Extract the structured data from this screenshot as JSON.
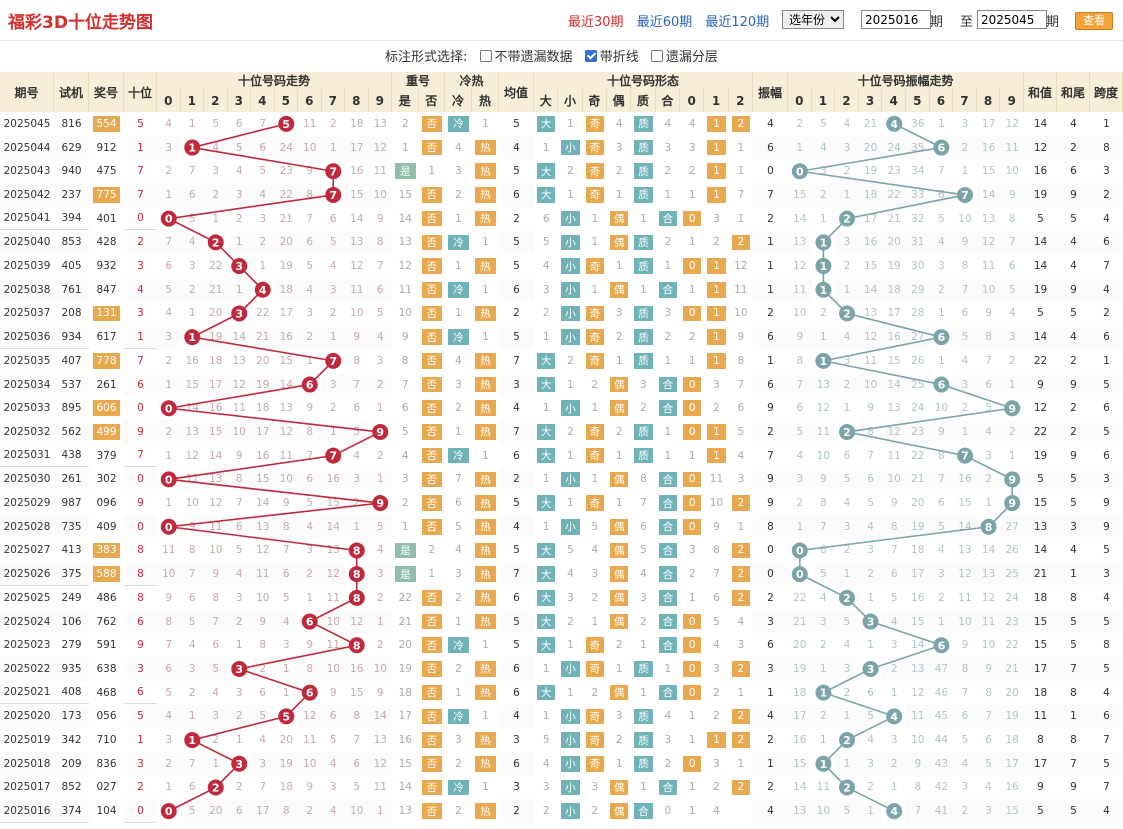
{
  "header": {
    "title": "福彩3D十位走势图",
    "periods": [
      "最近30期",
      "最近60期",
      "最近120期"
    ],
    "year_select": "选年份",
    "range_from": "2025016",
    "period_word": "期",
    "to_word": "至",
    "range_to": "2025045",
    "query_button": "查看"
  },
  "options": {
    "label": "标注形式选择:",
    "items": [
      {
        "label": "不带遗漏数据",
        "checked": false
      },
      {
        "label": "带折线",
        "checked": true
      },
      {
        "label": "遗漏分层",
        "checked": false
      }
    ]
  },
  "colors": {
    "red": "#c0283c",
    "teal": "#7aa3aa",
    "ltblue": "#6fb3b8",
    "orange": "#e8a94e",
    "beige": "#f7eed8"
  },
  "columns": {
    "groups": [
      "十位号码走势",
      "重号",
      "冷热",
      "十位号码形态",
      "十位号码振幅走势"
    ],
    "single": [
      "期号",
      "试机",
      "奖号",
      "十位",
      "均值",
      "振幅",
      "和值",
      "和尾",
      "跨度"
    ],
    "digits": [
      "0",
      "1",
      "2",
      "3",
      "4",
      "5",
      "6",
      "7",
      "8",
      "9"
    ],
    "repeat": [
      "是",
      "否"
    ],
    "coldhot": [
      "冷",
      "热"
    ],
    "shape": [
      "大",
      "小",
      "奇",
      "偶",
      "质",
      "合",
      "0",
      "1",
      "2"
    ]
  },
  "rows": [
    {
      "id": "2025045",
      "test": "816",
      "num": "554",
      "t": 5,
      "mark": true,
      "tr": "4 1 5 6 7 _ 11 2 18 13",
      "rep": "2 否",
      "ch": "冷 1",
      "avg": "5",
      "sh": "大 1 奇 4 质 4 4 1 2",
      "amp": 4,
      "ampr": "2 5 4 21 _ 36 1 3 17 12",
      "sum": 14,
      "tail": 4,
      "span": 1
    },
    {
      "id": "2025044",
      "test": "629",
      "num": "912",
      "t": 1,
      "mark": false,
      "tr": "3 _ 4 5 6 24 10 1 17 12",
      "rep": "1 否",
      "ch": "4 热",
      "avg": "4",
      "sh": "1 小 奇 3 质 3 3 1 1",
      "amp": 6,
      "ampr": "1 4 3 20 24 35 _ 2 16 11",
      "sum": 12,
      "tail": 2,
      "span": 8
    },
    {
      "id": "2025043",
      "test": "940",
      "num": "475",
      "t": 7,
      "mark": false,
      "tr": "2 7 3 4 5 23 9 _ 16 11",
      "rep": "是 1",
      "ch": "3 热",
      "avg": "5",
      "sh": "大 2 奇 2 质 2 2 1 1",
      "amp": 0,
      "ampr": "_ 3 2 19 23 34 7 1 15 10",
      "sum": 16,
      "tail": 6,
      "span": 3
    },
    {
      "id": "2025042",
      "test": "237",
      "num": "775",
      "t": 7,
      "mark": true,
      "tr": "1 6 2 3 4 22 8 _ 15 10",
      "rep": "15 否",
      "ch": "2 热",
      "avg": "6",
      "sh": "大 1 奇 1 质 1 1 1 7",
      "amp": 7,
      "ampr": "15 2 1 18 22 33 6 _ 14 9",
      "sum": 19,
      "tail": 9,
      "span": 2
    },
    {
      "id": "2025041",
      "test": "394",
      "num": "401",
      "t": 0,
      "mark": false,
      "tr": "_ 5 1 2 3 21 7 6 14 9",
      "rep": "14 否",
      "ch": "1 热",
      "avg": "2",
      "sh": "6 小 1 偶 1 合 0 3 1",
      "amp": 2,
      "ampr": "14 1 _ 17 21 32 5 10 13 8",
      "sum": 5,
      "tail": 5,
      "span": 4
    },
    {
      "id": "2025040",
      "test": "853",
      "num": "428",
      "t": 2,
      "mark": false,
      "tr": "7 4 _ 1 2 20 6 5 13 8",
      "rep": "13 否",
      "ch": "冷 1",
      "avg": "5",
      "sh": "5 小 1 偶 质 2 1 2 2",
      "amp": 1,
      "ampr": "13 _ 3 16 20 31 4 9 12 7",
      "sum": 14,
      "tail": 4,
      "span": 6
    },
    {
      "id": "2025039",
      "test": "405",
      "num": "932",
      "t": 3,
      "mark": false,
      "tr": "6 3 22 _ 1 19 5 4 12 7",
      "rep": "12 否",
      "ch": "1 热",
      "avg": "5",
      "sh": "4 小 奇 1 质 1 0 1 12",
      "amp": 1,
      "ampr": "12 _ 2 15 19 30 3 8 11 6",
      "sum": 14,
      "tail": 4,
      "span": 7
    },
    {
      "id": "2025038",
      "test": "761",
      "num": "847",
      "t": 4,
      "mark": false,
      "tr": "5 2 21 1 _ 18 4 3 11 6",
      "rep": "11 否",
      "ch": "冷 1",
      "avg": "6",
      "sh": "3 小 1 偶 1 合 1 1 11",
      "amp": 1,
      "ampr": "11 _ 1 14 18 29 2 7 10 5",
      "sum": 19,
      "tail": 9,
      "span": 4
    },
    {
      "id": "2025037",
      "test": "208",
      "num": "131",
      "t": 3,
      "mark": true,
      "tr": "4 1 20 _ 22 17 3 2 10 5",
      "rep": "10 否",
      "ch": "1 热",
      "avg": "2",
      "sh": "2 小 奇 3 质 3 0 1 10",
      "amp": 2,
      "ampr": "10 2 _ 13 17 28 1 6 9 4",
      "sum": 5,
      "tail": 5,
      "span": 2
    },
    {
      "id": "2025036",
      "test": "934",
      "num": "617",
      "t": 1,
      "mark": false,
      "tr": "3 _ 19 14 21 16 2 1 9 4",
      "rep": "9 否",
      "ch": "冷 1",
      "avg": "5",
      "sh": "1 小 奇 2 质 2 2 1 9",
      "amp": 6,
      "ampr": "9 1 4 12 16 27 _ 5 8 3",
      "sum": 14,
      "tail": 4,
      "span": 6
    },
    {
      "id": "2025035",
      "test": "407",
      "num": "778",
      "t": 7,
      "mark": true,
      "tr": "2 16 18 13 20 15 1 _ 8 3",
      "rep": "8 否",
      "ch": "4 热",
      "avg": "7",
      "sh": "大 2 奇 1 质 1 1 1 8",
      "amp": 1,
      "ampr": "8 _ 3 11 15 26 1 4 7 2",
      "sum": 22,
      "tail": 2,
      "span": 1
    },
    {
      "id": "2025034",
      "test": "537",
      "num": "261",
      "t": 6,
      "mark": false,
      "tr": "1 15 17 12 19 14 _ 3 7 2",
      "rep": "7 否",
      "ch": "3 热",
      "avg": "3",
      "sh": "大 1 2 偶 3 合 0 3 7",
      "amp": 6,
      "ampr": "7 13 2 10 14 25 _ 3 6 1",
      "sum": 9,
      "tail": 9,
      "span": 5
    },
    {
      "id": "2025033",
      "test": "895",
      "num": "606",
      "t": 0,
      "mark": true,
      "tr": "_ 14 16 11 18 13 9 2 6 1",
      "rep": "6 否",
      "ch": "2 热",
      "avg": "4",
      "sh": "1 小 1 偶 2 合 0 2 6",
      "amp": 9,
      "ampr": "6 12 1 9 13 24 10 2 5 _",
      "sum": 12,
      "tail": 2,
      "span": 6
    },
    {
      "id": "2025032",
      "test": "562",
      "num": "499",
      "t": 9,
      "mark": true,
      "tr": "2 13 15 10 17 12 8 1 5 _",
      "rep": "5 否",
      "ch": "1 热",
      "avg": "7",
      "sh": "大 2 奇 2 质 1 0 1 5",
      "amp": 2,
      "ampr": "5 11 _ 8 12 23 9 1 4 2",
      "sum": 22,
      "tail": 2,
      "span": 5
    },
    {
      "id": "2025031",
      "test": "438",
      "num": "379",
      "t": 7,
      "mark": false,
      "tr": "1 12 14 9 16 11 7 _ 4 2",
      "rep": "4 否",
      "ch": "冷 1",
      "avg": "6",
      "sh": "大 1 奇 1 质 1 1 1 4",
      "amp": 7,
      "ampr": "4 10 6 7 11 22 8 _ 3 1",
      "sum": 19,
      "tail": 9,
      "span": 6
    },
    {
      "id": "2025030",
      "test": "261",
      "num": "302",
      "t": 0,
      "mark": false,
      "tr": "_ 11 13 8 15 10 6 16 3 1",
      "rep": "3 否",
      "ch": "7 热",
      "avg": "2",
      "sh": "1 小 1 偶 8 合 0 11 3",
      "amp": 9,
      "ampr": "3 9 5 6 10 21 7 16 2 _",
      "sum": 5,
      "tail": 5,
      "span": 3
    },
    {
      "id": "2025029",
      "test": "987",
      "num": "096",
      "t": 9,
      "mark": false,
      "tr": "1 10 12 7 14 9 5 15 2 _",
      "rep": "2 否",
      "ch": "6 热",
      "avg": "5",
      "sh": "大 1 奇 1 7 合 0 10 2",
      "amp": 9,
      "ampr": "2 8 4 5 9 20 6 15 1 _",
      "sum": 15,
      "tail": 5,
      "span": 9
    },
    {
      "id": "2025028",
      "test": "735",
      "num": "409",
      "t": 0,
      "mark": false,
      "tr": "_ 9 11 6 13 8 4 14 1 5",
      "rep": "1 否",
      "ch": "5 热",
      "avg": "4",
      "sh": "1 小 5 偶 6 合 0 9 1",
      "amp": 8,
      "ampr": "1 7 3 4 8 19 5 14 _ 27",
      "sum": 13,
      "tail": 3,
      "span": 9
    },
    {
      "id": "2025027",
      "test": "413",
      "num": "383",
      "t": 8,
      "mark": true,
      "tr": "11 8 10 5 12 7 3 13 _ 4",
      "rep": "是 2",
      "ch": "4 热",
      "avg": "5",
      "sh": "大 5 4 偶 5 合 3 8 2",
      "amp": 0,
      "ampr": "_ 6 2 3 7 18 4 13 14 26",
      "sum": 14,
      "tail": 4,
      "span": 5
    },
    {
      "id": "2025026",
      "test": "375",
      "num": "588",
      "t": 8,
      "mark": true,
      "tr": "10 7 9 4 11 6 2 12 _ 3",
      "rep": "是 1",
      "ch": "3 热",
      "avg": "7",
      "sh": "大 4 3 偶 4 合 2 7 2",
      "amp": 0,
      "ampr": "_ 5 1 2 6 17 3 12 13 25",
      "sum": 21,
      "tail": 1,
      "span": 3
    },
    {
      "id": "2025025",
      "test": "249",
      "num": "486",
      "t": 8,
      "mark": false,
      "tr": "9 6 8 3 10 5 1 11 _ 2",
      "rep": "22 否",
      "ch": "2 热",
      "avg": "6",
      "sh": "大 3 2 偶 3 合 1 6 2",
      "amp": 2,
      "ampr": "22 4 _ 1 5 16 2 11 12 24",
      "sum": 18,
      "tail": 8,
      "span": 4
    },
    {
      "id": "2025024",
      "test": "106",
      "num": "762",
      "t": 6,
      "mark": false,
      "tr": "8 5 7 2 9 4 _ 10 12 1",
      "rep": "21 否",
      "ch": "1 热",
      "avg": "5",
      "sh": "大 2 1 偶 2 合 0 5 4",
      "amp": 3,
      "ampr": "21 3 5 _ 4 15 1 10 11 23",
      "sum": 15,
      "tail": 5,
      "span": 5
    },
    {
      "id": "2025023",
      "test": "279",
      "num": "591",
      "t": 9,
      "mark": false,
      "tr": "7 4 6 1 8 3 9 11 _ 2",
      "rep": "20 否",
      "ch": "冷 1",
      "avg": "5",
      "sh": "大 1 奇 2 1 合 0 4 3",
      "amp": 6,
      "ampr": "20 2 4 1 3 14 _ 9 10 22",
      "sum": 15,
      "tail": 5,
      "span": 8
    },
    {
      "id": "2025022",
      "test": "935",
      "num": "638",
      "t": 3,
      "mark": false,
      "tr": "6 3 5 _ 2 1 8 10 16 10",
      "rep": "19 否",
      "ch": "2 热",
      "avg": "6",
      "sh": "1 小 奇 1 质 1 0 3 2",
      "amp": 3,
      "ampr": "19 1 3 _ 2 13 47 8 9 21",
      "sum": 17,
      "tail": 7,
      "span": 5
    },
    {
      "id": "2025021",
      "test": "408",
      "num": "468",
      "t": 6,
      "mark": false,
      "tr": "5 2 4 3 6 1 _ 9 15 9",
      "rep": "18 否",
      "ch": "1 热",
      "avg": "6",
      "sh": "大 1 2 偶 1 合 0 2 1",
      "amp": 1,
      "ampr": "18 _ 2 6 1 12 46 7 8 20",
      "sum": 18,
      "tail": 8,
      "span": 4
    },
    {
      "id": "2025020",
      "test": "173",
      "num": "056",
      "t": 5,
      "mark": false,
      "tr": "4 1 3 2 5 _ 12 6 8 14",
      "rep": "17 否",
      "ch": "冷 1",
      "avg": "4",
      "sh": "1 小 奇 3 质 4 1 2 2",
      "amp": 4,
      "ampr": "17 2 1 5 _ 11 45 6 7 19",
      "sum": 11,
      "tail": 1,
      "span": 6
    },
    {
      "id": "2025019",
      "test": "342",
      "num": "710",
      "t": 1,
      "mark": false,
      "tr": "3 _ 2 1 4 20 11 5 7 13",
      "rep": "16 否",
      "ch": "3 热",
      "avg": "3",
      "sh": "5 小 奇 2 质 3 1 1 2",
      "amp": 2,
      "ampr": "16 1 _ 4 3 10 44 5 6 18",
      "sum": 8,
      "tail": 8,
      "span": 7
    },
    {
      "id": "2025018",
      "test": "209",
      "num": "836",
      "t": 3,
      "mark": false,
      "tr": "2 7 1 _ 3 19 10 4 6 12",
      "rep": "15 否",
      "ch": "2 热",
      "avg": "6",
      "sh": "4 小 奇 1 质 2 0 3 1",
      "amp": 1,
      "ampr": "15 _ 1 3 2 9 43 4 5 17",
      "sum": 17,
      "tail": 7,
      "span": 5
    },
    {
      "id": "2025017",
      "test": "852",
      "num": "027",
      "t": 2,
      "mark": false,
      "tr": "1 6 _ 2 7 18 9 3 5 11",
      "rep": "14 否",
      "ch": "冷 1",
      "avg": "3",
      "sh": "3 小 3 偶 1 合 1 2 2",
      "amp": 2,
      "ampr": "14 11 _ 2 1 8 42 3 4 16",
      "sum": 9,
      "tail": 9,
      "span": 7
    },
    {
      "id": "2025016",
      "test": "374",
      "num": "104",
      "t": 0,
      "mark": false,
      "tr": "_ 5 20 6 17 8 2 4 10 1",
      "rep": "13 否",
      "ch": "2 热",
      "avg": "2",
      "sh": "2 小 2 偶 合 0 1 4",
      "amp": 4,
      "ampr": "13 10 5 1 _ 7 41 2 3 15",
      "sum": 5,
      "tail": 5,
      "span": 4
    }
  ]
}
